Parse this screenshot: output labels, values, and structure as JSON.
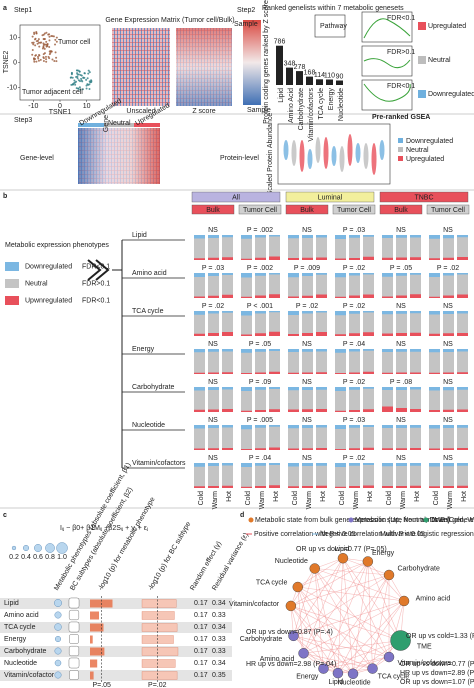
{
  "panel_a": {
    "label": "a",
    "step1": "Step1",
    "step2": "Step2",
    "step3": "Step3",
    "tsne_x": "TSNE1",
    "tsne_y": "TSNE2",
    "tsne_xlim": [
      -15,
      15
    ],
    "tsne_xticks": [
      -10,
      0,
      10
    ],
    "tsne_ylim": [
      -15,
      15
    ],
    "tsne_yticks": [
      -10,
      0,
      10
    ],
    "tumor_cell": "Tumor cell",
    "adjacent_cell": "Tumor adjacent cell",
    "matrix_title": "Gene Expression Matrix (Tumor cell/Bulk)",
    "sample": "Sample",
    "gene": "Gene",
    "unscaled": "Unscaled",
    "zscore": "Z score",
    "ranked_title": "Ranked genelists within 7 metabolic genesets",
    "pathway": "Pathway",
    "ranked_axis": "Protein coding genes ranked by Z score",
    "sample2": "Sample",
    "geneset_sizes": {
      "type": "bar",
      "categories": [
        "Lipid",
        "Amino Acid",
        "Carbohydrate",
        "Vitamin/cofactors",
        "TCA cycle",
        "Energy",
        "Nucleotide"
      ],
      "values": [
        786,
        348,
        278,
        168,
        114,
        110,
        90
      ],
      "ylim": [
        0,
        800
      ],
      "color": "#222222"
    },
    "fdr": [
      "FDR<0.1",
      "FDR>0.1",
      "FDR<0.1"
    ],
    "legend": [
      "Upregulated",
      "Neutral",
      "Downregulated"
    ],
    "legend_colors": [
      "#e8505b",
      "#bdbdbd",
      "#6fb0de"
    ],
    "gsea": "Pre-ranked GSEA",
    "gene_level": "Gene-level",
    "protein_level": "Protein-level",
    "heat_labels": [
      "Downregulated",
      "Neutral",
      "Upregulated"
    ],
    "protein_axis": "Scaled Protein Abundance",
    "protein_legend": [
      "Downregulated",
      "Neutral",
      "Upregulated"
    ]
  },
  "panel_b": {
    "label": "b",
    "type": "stacked-bar",
    "title": "Metabolic expression phenotypes",
    "legend": [
      "Downregulated",
      "Neutral",
      "Upwnregulated"
    ],
    "legend_fdr": [
      "FDR<0.1",
      "FDR>0.1",
      "FDR<0.1"
    ],
    "colors": {
      "down": "#7bb7e2",
      "neutral": "#c4c4c4",
      "up": "#e8505b"
    },
    "cohorts": [
      "All",
      "Luminal",
      "TNBC"
    ],
    "cohort_colors": [
      "#b9b3e0",
      "#f2ef9c",
      "#e8505b"
    ],
    "sources": [
      "Bulk",
      "Tumor Cell",
      "Bulk",
      "Tumor Cell",
      "Bulk",
      "Tumor Cell"
    ],
    "source_colors": [
      "#e8505b",
      "#d0d0d0",
      "#e8505b",
      "#d0d0d0",
      "#e8505b",
      "#d0d0d0"
    ],
    "tme": [
      "Cold",
      "Warm",
      "Hot"
    ],
    "ylim": [
      0,
      100
    ],
    "rows": [
      {
        "name": "Lipid",
        "color": "#e07a1f",
        "p": [
          "NS",
          "P = .002",
          "NS",
          "P = .03",
          "NS",
          "NS"
        ],
        "down": [
          [
            14,
            12,
            9
          ],
          [
            15,
            10,
            6
          ],
          [
            13,
            12,
            10
          ],
          [
            16,
            11,
            7
          ],
          [
            12,
            11,
            10
          ],
          [
            15,
            13,
            9
          ]
        ],
        "up": [
          [
            7,
            9,
            11
          ],
          [
            5,
            9,
            14
          ],
          [
            8,
            9,
            10
          ],
          [
            6,
            8,
            13
          ],
          [
            9,
            10,
            11
          ],
          [
            7,
            9,
            12
          ]
        ]
      },
      {
        "name": "Amino acid",
        "color": "#6a5fc1",
        "p": [
          "P = .03",
          "P = .002",
          "P = .009",
          "P = .02",
          "P = .05",
          "P = .02"
        ],
        "down": [
          [
            16,
            12,
            8
          ],
          [
            18,
            11,
            6
          ],
          [
            17,
            12,
            7
          ],
          [
            17,
            10,
            6
          ],
          [
            15,
            11,
            7
          ],
          [
            16,
            10,
            6
          ]
        ],
        "up": [
          [
            6,
            9,
            13
          ],
          [
            5,
            10,
            15
          ],
          [
            6,
            9,
            14
          ],
          [
            5,
            10,
            14
          ],
          [
            6,
            10,
            15
          ],
          [
            5,
            10,
            14
          ]
        ]
      },
      {
        "name": "TCA cycle",
        "color": "#e0a21f",
        "p": [
          "P = .02",
          "P < .001",
          "P = .02",
          "P = .02",
          "NS",
          "NS"
        ],
        "down": [
          [
            15,
            10,
            7
          ],
          [
            18,
            10,
            5
          ],
          [
            16,
            10,
            6
          ],
          [
            17,
            11,
            6
          ],
          [
            13,
            11,
            9
          ],
          [
            14,
            12,
            10
          ]
        ],
        "up": [
          [
            9,
            12,
            16
          ],
          [
            6,
            11,
            17
          ],
          [
            8,
            12,
            16
          ],
          [
            7,
            11,
            15
          ],
          [
            10,
            12,
            13
          ],
          [
            9,
            11,
            12
          ]
        ]
      },
      {
        "name": "Energy",
        "color": "#6c9a2c",
        "p": [
          "NS",
          "P = .05",
          "NS",
          "P = .04",
          "NS",
          "NS"
        ],
        "down": [
          [
            13,
            11,
            10
          ],
          [
            15,
            11,
            8
          ],
          [
            12,
            11,
            10
          ],
          [
            15,
            10,
            7
          ],
          [
            12,
            11,
            11
          ],
          [
            13,
            12,
            10
          ]
        ],
        "up": [
          [
            5,
            6,
            7
          ],
          [
            4,
            6,
            9
          ],
          [
            5,
            6,
            7
          ],
          [
            4,
            6,
            9
          ],
          [
            5,
            6,
            6
          ],
          [
            5,
            6,
            7
          ]
        ]
      },
      {
        "name": "Carbohydrate",
        "color": "#d0308a",
        "p": [
          "NS",
          "P = .09",
          "NS",
          "P = .02",
          "P = .08",
          "NS"
        ],
        "down": [
          [
            14,
            12,
            10
          ],
          [
            16,
            11,
            8
          ],
          [
            13,
            12,
            11
          ],
          [
            16,
            11,
            7
          ],
          [
            12,
            12,
            10
          ],
          [
            14,
            13,
            11
          ]
        ],
        "up": [
          [
            9,
            10,
            12
          ],
          [
            5,
            8,
            11
          ],
          [
            10,
            11,
            12
          ],
          [
            5,
            8,
            11
          ],
          [
            22,
            16,
            12
          ],
          [
            8,
            9,
            10
          ]
        ]
      },
      {
        "name": "Nucleotide",
        "color": "#b07a1a",
        "p": [
          "NS",
          "P = .005",
          "NS",
          "P = .03",
          "NS",
          "NS"
        ],
        "down": [
          [
            14,
            12,
            10
          ],
          [
            17,
            11,
            7
          ],
          [
            13,
            12,
            10
          ],
          [
            16,
            11,
            8
          ],
          [
            12,
            12,
            11
          ],
          [
            14,
            12,
            11
          ]
        ],
        "up": [
          [
            6,
            7,
            8
          ],
          [
            4,
            7,
            10
          ],
          [
            6,
            7,
            8
          ],
          [
            4,
            7,
            9
          ],
          [
            7,
            7,
            8
          ],
          [
            6,
            7,
            8
          ]
        ]
      },
      {
        "name": "Vitamin/cofactors",
        "color": "#666666",
        "p": [
          "NS",
          "P = .04",
          "NS",
          "P = .02",
          "NS",
          "NS"
        ],
        "down": [
          [
            15,
            12,
            10
          ],
          [
            16,
            11,
            8
          ],
          [
            14,
            12,
            11
          ],
          [
            16,
            11,
            8
          ],
          [
            13,
            12,
            11
          ],
          [
            14,
            13,
            11
          ]
        ],
        "up": [
          [
            7,
            8,
            9
          ],
          [
            5,
            8,
            11
          ],
          [
            7,
            8,
            9
          ],
          [
            5,
            8,
            10
          ],
          [
            8,
            8,
            9
          ],
          [
            7,
            8,
            9
          ]
        ]
      }
    ]
  },
  "panel_c": {
    "label": "c",
    "formula": "Iᵢⱼ ~ β0+ β1Mᵢⱼ +β2Sᵢⱼ + γᵢ + εⱼ",
    "size_legend": [
      0.2,
      0.4,
      0.6,
      0.8,
      {
        "value": 1,
        "label": "1.0"
      }
    ],
    "headers": [
      "Metabolic phenotypes (absolute coefficient, β1)",
      "BC subtypes (absolute coefficient, β2)",
      "-log10 (p) for metabolic phenotype",
      "-log10 (p) for BC subtype",
      "Random effect (γ)",
      "Residual variance (ε)"
    ],
    "logp_xlim": [
      0,
      5
    ],
    "bar_color": "#e8724a",
    "thresholds": [
      {
        "value": 1.3,
        "label": "P=.05"
      },
      {
        "value": 1.7,
        "label": "P=.02"
      }
    ],
    "rows": [
      "Lipid",
      "Amino acid",
      "TCA cycle",
      "Energy",
      "Carbohydrate",
      "Nucleotide",
      "Vitamin/cofactor"
    ],
    "beta1": [
      0.6,
      0.5,
      0.55,
      0.4,
      0.5,
      0.45,
      0.5
    ],
    "beta2": [
      0.9,
      0.85,
      0.9,
      0.8,
      0.85,
      0.9,
      0.8
    ],
    "logp1": [
      2.5,
      1.0,
      1.5,
      0.3,
      1.6,
      0.8,
      0.4
    ],
    "logp2": [
      3.8,
      3.6,
      3.9,
      3.5,
      4.0,
      3.7,
      3.9
    ],
    "gamma": [
      0.17,
      0.17,
      0.17,
      0.17,
      0.17,
      0.17,
      0.17
    ],
    "epsilon": [
      0.34,
      0.33,
      0.34,
      0.33,
      0.33,
      0.34,
      0.35
    ]
  },
  "panel_d": {
    "label": "d",
    "legend": [
      "Metabolic state from bulk gene expression (Up, Neutral, Down)",
      "Metabolic state from tumor cell gene expression (Up, Neutral, Down)",
      "TME (Cold, Warm, Hot)",
      "Positive correlation with P < 0.05",
      "Negative correlation with P < 0.05",
      "Multivariate logistic regression"
    ],
    "group_colors": {
      "bulk": "#e0792a",
      "tumor": "#7e74c6",
      "tme": "#2f9e6e"
    },
    "nodes": [
      {
        "label": "Lipid",
        "group": "bulk"
      },
      {
        "label": "Energy",
        "group": "bulk"
      },
      {
        "label": "Carbohydrate",
        "group": "bulk"
      },
      {
        "label": "Amino acid",
        "group": "bulk"
      },
      {
        "label": "TME",
        "group": "tme"
      },
      {
        "label": "Vitamin/cofactors",
        "group": "tumor"
      },
      {
        "label": "TCA cycle",
        "group": "tumor"
      },
      {
        "label": "Nucleotide",
        "group": "tumor"
      },
      {
        "label": "Lipid",
        "group": "tumor"
      },
      {
        "label": "Energy",
        "group": "tumor"
      },
      {
        "label": "Amino acid",
        "group": "tumor"
      },
      {
        "label": "Carbohydrate",
        "group": "tumor"
      },
      {
        "label": "Vitamin/cofactor",
        "group": "bulk"
      },
      {
        "label": "TCA cycle",
        "group": "bulk"
      },
      {
        "label": "Nucleotide",
        "group": "bulk"
      }
    ],
    "annotations": [
      "OR up vs down=0.77 (P=.05)",
      "OR up vs cold=1.33 (P=.001)",
      "OR up vs down=0.87 (P=.4)",
      "HR up vs down=2.98 (P=.04)",
      "OR up vs down=0.77 (P=.05)",
      "HR up vs down=2.89 (P=.04)",
      "OR up vs down=1.07 (P=.1)"
    ]
  }
}
